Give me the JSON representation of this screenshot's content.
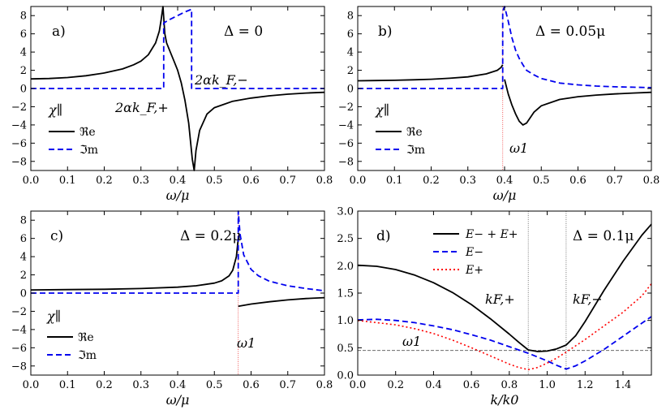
{
  "figure": {
    "panels": [
      "a",
      "b",
      "c",
      "d"
    ]
  },
  "chart_data": [
    {
      "id": "a",
      "type": "line",
      "panel_label": "a)",
      "title": "Δ = 0",
      "xlabel": "ω/μ",
      "ylabel": "",
      "xlim": [
        0,
        0.8
      ],
      "ylim": [
        -9,
        9
      ],
      "xticks": [
        "0.0",
        "0.1",
        "0.2",
        "0.3",
        "0.4",
        "0.5",
        "0.6",
        "0.7",
        "0.8"
      ],
      "yticks": [
        "−8",
        "−6",
        "−4",
        "−2",
        "0",
        "2",
        "4",
        "6",
        "8"
      ],
      "legend_title": "χ∥",
      "legend": [
        "ℜe",
        "ℑm"
      ],
      "annotations": [
        "2αk_F,+",
        "2αk_F,−"
      ],
      "series": [
        {
          "name": "ℜe",
          "style": "solid",
          "color": "#000000",
          "x": [
            0,
            0.05,
            0.1,
            0.15,
            0.2,
            0.25,
            0.28,
            0.3,
            0.32,
            0.34,
            0.35,
            0.355,
            0.36,
            0.365,
            0.37,
            0.38,
            0.39,
            0.4,
            0.41,
            0.42,
            0.43,
            0.44,
            0.445,
            0.45,
            0.46,
            0.48,
            0.5,
            0.55,
            0.6,
            0.65,
            0.7,
            0.75,
            0.8
          ],
          "y": [
            1.05,
            1.1,
            1.2,
            1.4,
            1.7,
            2.15,
            2.6,
            3.0,
            3.7,
            5.0,
            6.3,
            7.5,
            9.0,
            6.0,
            5.0,
            4.0,
            3.0,
            2.0,
            0.6,
            -1.3,
            -3.8,
            -7.8,
            -9.0,
            -6.8,
            -4.6,
            -2.8,
            -2.1,
            -1.4,
            -1.05,
            -0.8,
            -0.62,
            -0.5,
            -0.42
          ]
        },
        {
          "name": "ℑm",
          "style": "dashed",
          "color": "#0000ee",
          "x": [
            0,
            0.362,
            0.362,
            0.38,
            0.4,
            0.42,
            0.438,
            0.438,
            0.8
          ],
          "y": [
            0,
            0,
            7.2,
            7.6,
            8.0,
            8.4,
            8.7,
            0,
            0
          ]
        }
      ]
    },
    {
      "id": "b",
      "type": "line",
      "panel_label": "b)",
      "title": "Δ = 0.05μ",
      "xlabel": "ω/μ",
      "ylabel": "",
      "xlim": [
        0,
        0.8
      ],
      "ylim": [
        -9,
        9
      ],
      "xticks": [
        "0.0",
        "0.1",
        "0.2",
        "0.3",
        "0.4",
        "0.5",
        "0.6",
        "0.7",
        "0.8"
      ],
      "yticks": [
        "−8",
        "−6",
        "−4",
        "−2",
        "0",
        "2",
        "4",
        "6",
        "8"
      ],
      "legend_title": "χ∥",
      "legend": [
        "ℜe",
        "ℑm"
      ],
      "vline": {
        "x": 0.395,
        "label": "ω1"
      },
      "series": [
        {
          "name": "ℜe",
          "style": "solid",
          "color": "#000000",
          "x": [
            0,
            0.05,
            0.1,
            0.15,
            0.2,
            0.25,
            0.3,
            0.35,
            0.38,
            0.39,
            0.395
          ],
          "y": [
            0.85,
            0.87,
            0.9,
            0.95,
            1.02,
            1.12,
            1.27,
            1.6,
            2.0,
            2.3,
            2.6
          ]
        },
        {
          "name": "ℜe",
          "style": "solid",
          "color": "#000000",
          "x": [
            0.4,
            0.41,
            0.42,
            0.43,
            0.44,
            0.45,
            0.46,
            0.47,
            0.48,
            0.5,
            0.55,
            0.6,
            0.65,
            0.7,
            0.75,
            0.8
          ],
          "y": [
            1.0,
            -0.6,
            -1.8,
            -2.8,
            -3.6,
            -4.0,
            -3.8,
            -3.2,
            -2.6,
            -1.9,
            -1.2,
            -0.9,
            -0.72,
            -0.6,
            -0.5,
            -0.42
          ]
        },
        {
          "name": "ℑm",
          "style": "dashed",
          "color": "#0000ee",
          "x": [
            0,
            0.395,
            0.395,
            0.4,
            0.41,
            0.42,
            0.43,
            0.44,
            0.45,
            0.46,
            0.48,
            0.5,
            0.55,
            0.6,
            0.65,
            0.7,
            0.75,
            0.8
          ],
          "y": [
            0,
            0,
            8.5,
            9.0,
            7.4,
            5.6,
            4.2,
            3.3,
            2.6,
            2.0,
            1.5,
            1.1,
            0.6,
            0.4,
            0.27,
            0.19,
            0.14,
            0.1
          ]
        }
      ]
    },
    {
      "id": "c",
      "type": "line",
      "panel_label": "c)",
      "title": "Δ = 0.2μ",
      "xlabel": "ω/μ",
      "ylabel": "",
      "xlim": [
        0,
        0.8
      ],
      "ylim": [
        -9,
        9
      ],
      "xticks": [
        "0.0",
        "0.1",
        "0.2",
        "0.3",
        "0.4",
        "0.5",
        "0.6",
        "0.7",
        "0.8"
      ],
      "yticks": [
        "−8",
        "−6",
        "−4",
        "−2",
        "0",
        "2",
        "4",
        "6",
        "8"
      ],
      "legend_title": "χ∥",
      "legend": [
        "ℜe",
        "ℑm"
      ],
      "vline": {
        "x": 0.565,
        "label": "ω1"
      },
      "series": [
        {
          "name": "ℜe",
          "style": "solid",
          "color": "#000000",
          "x": [
            0,
            0.1,
            0.2,
            0.3,
            0.4,
            0.45,
            0.5,
            0.52,
            0.54,
            0.55,
            0.56,
            0.565
          ],
          "y": [
            0.35,
            0.38,
            0.42,
            0.5,
            0.65,
            0.8,
            1.1,
            1.35,
            1.9,
            2.5,
            4.0,
            6.0
          ]
        },
        {
          "name": "ℜe",
          "style": "solid",
          "color": "#000000",
          "x": [
            0.565,
            0.6,
            0.65,
            0.7,
            0.75,
            0.8
          ],
          "y": [
            -1.45,
            -1.2,
            -0.95,
            -0.75,
            -0.6,
            -0.5
          ]
        },
        {
          "name": "ℑm",
          "style": "dashed",
          "color": "#0000ee",
          "x": [
            0,
            0.565,
            0.565,
            0.57,
            0.58,
            0.6,
            0.62,
            0.65,
            0.7,
            0.75,
            0.8
          ],
          "y": [
            0,
            0,
            9.0,
            6.5,
            4.2,
            2.6,
            1.9,
            1.3,
            0.8,
            0.5,
            0.25
          ]
        }
      ]
    },
    {
      "id": "d",
      "type": "line",
      "panel_label": "d)",
      "title": "Δ = 0.1μ",
      "xlabel": "k/k0",
      "ylabel": "",
      "xlim": [
        0,
        1.55
      ],
      "ylim": [
        0,
        3.0
      ],
      "xticks": [
        "0.0",
        "0.2",
        "0.4",
        "0.6",
        "0.8",
        "1.0",
        "1.2",
        "1.4"
      ],
      "yticks": [
        "0.0",
        "0.5",
        "1.0",
        "1.5",
        "2.0",
        "2.5",
        "3.0"
      ],
      "legend": [
        "E− + E+",
        "E−",
        "E+"
      ],
      "vlines": [
        {
          "x": 0.9,
          "label": "kF,+"
        },
        {
          "x": 1.1,
          "label": "kF,−"
        }
      ],
      "hline": {
        "y": 0.45,
        "label": "ω1"
      },
      "series": [
        {
          "name": "E− + E+",
          "style": "solid",
          "color": "#000000",
          "x": [
            0,
            0.1,
            0.2,
            0.3,
            0.4,
            0.5,
            0.6,
            0.7,
            0.8,
            0.85,
            0.9,
            0.95,
            1.0,
            1.05,
            1.1,
            1.15,
            1.2,
            1.3,
            1.4,
            1.5,
            1.55
          ],
          "y": [
            2.01,
            1.99,
            1.93,
            1.83,
            1.69,
            1.51,
            1.29,
            1.03,
            0.75,
            0.6,
            0.46,
            0.43,
            0.44,
            0.48,
            0.55,
            0.72,
            0.98,
            1.55,
            2.08,
            2.56,
            2.76
          ]
        },
        {
          "name": "E−",
          "style": "dashed",
          "color": "#0000ee",
          "x": [
            0,
            0.1,
            0.2,
            0.3,
            0.4,
            0.5,
            0.6,
            0.7,
            0.8,
            0.9,
            1.0,
            1.05,
            1.1,
            1.15,
            1.2,
            1.3,
            1.4,
            1.5,
            1.55
          ],
          "y": [
            1.01,
            1.02,
            1.0,
            0.96,
            0.9,
            0.83,
            0.74,
            0.64,
            0.52,
            0.4,
            0.26,
            0.18,
            0.11,
            0.17,
            0.26,
            0.47,
            0.71,
            0.95,
            1.07
          ]
        },
        {
          "name": "E+",
          "style": "dotted",
          "color": "#ff0000",
          "x": [
            0,
            0.1,
            0.2,
            0.3,
            0.4,
            0.5,
            0.6,
            0.7,
            0.8,
            0.85,
            0.9,
            0.95,
            1.0,
            1.05,
            1.1,
            1.2,
            1.3,
            1.4,
            1.5,
            1.55
          ],
          "y": [
            1.0,
            0.96,
            0.92,
            0.85,
            0.76,
            0.64,
            0.5,
            0.35,
            0.2,
            0.14,
            0.1,
            0.14,
            0.22,
            0.31,
            0.42,
            0.65,
            0.9,
            1.15,
            1.45,
            1.67
          ]
        }
      ]
    }
  ]
}
